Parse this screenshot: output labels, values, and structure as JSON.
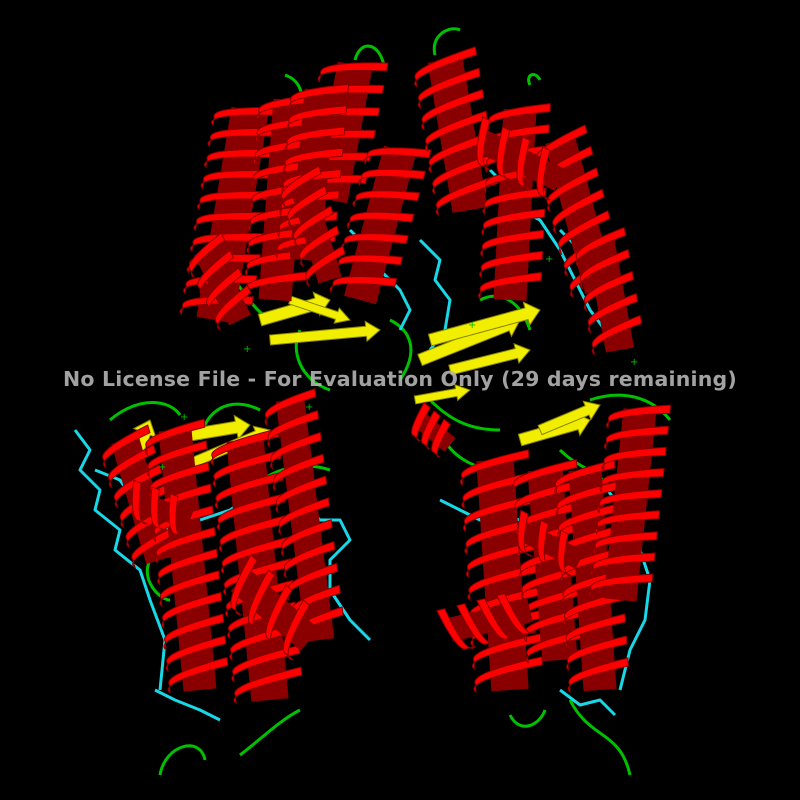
{
  "viewer": {
    "watermark": "No License File - For Evaluation Only (29 days remaining)",
    "background": "#000000"
  },
  "structure": {
    "helix_color": "#ff0000",
    "helix_shadow": "#8a0000",
    "sheet_color": "#f2ee00",
    "loop_color": "#00c000",
    "ligand_color": "#18d8e8"
  }
}
